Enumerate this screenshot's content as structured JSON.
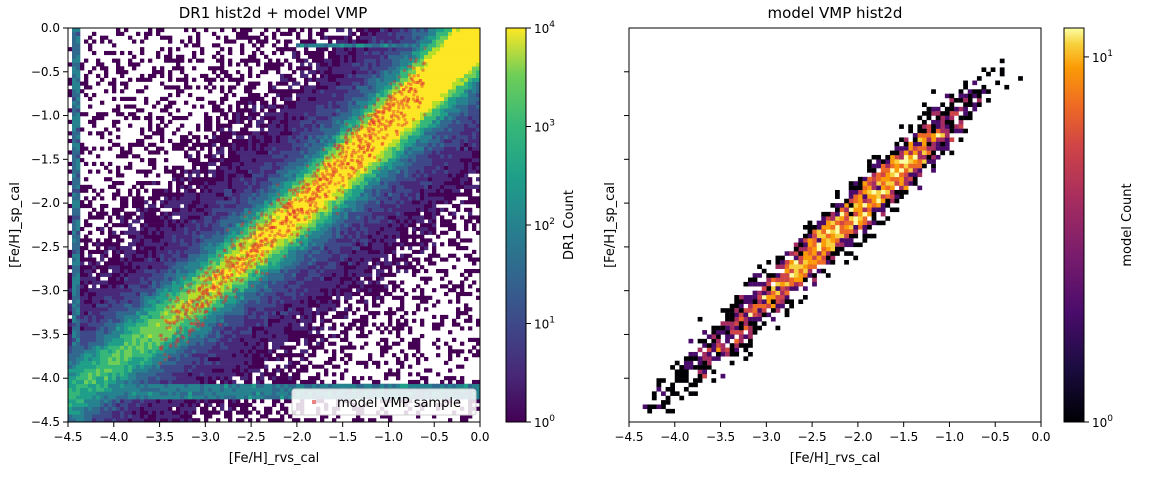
{
  "chart_data": [
    {
      "type": "heatmap",
      "title": "DR1 hist2d + model VMP",
      "xlabel": "[Fe/H]_rvs_cal",
      "ylabel": "[Fe/H]_sp_cal",
      "xlim": [
        -4.5,
        0.0
      ],
      "ylim": [
        -4.5,
        0.0
      ],
      "xticks": [
        -4.5,
        -4.0,
        -3.5,
        -3.0,
        -2.5,
        -2.0,
        -1.5,
        -1.0,
        -0.5,
        0.0
      ],
      "yticks": [
        -4.5,
        -4.0,
        -3.5,
        -3.0,
        -2.5,
        -2.0,
        -1.5,
        -1.0,
        -0.5,
        0.0
      ],
      "xtick_labels": [
        "−4.5",
        "−4.0",
        "−3.5",
        "−3.0",
        "−2.5",
        "−2.0",
        "−1.5",
        "−1.0",
        "−0.5",
        "0.0"
      ],
      "ytick_labels": [
        "−4.5",
        "−4.0",
        "−3.5",
        "−3.0",
        "−2.5",
        "−2.0",
        "−1.5",
        "−1.0",
        "−0.5",
        "0.0"
      ],
      "colormap": "viridis",
      "colorbar": {
        "label": "DR1 Count",
        "scale": "log",
        "range": [
          1,
          10000
        ],
        "ticks": [
          {
            "base": "10",
            "exp": "0"
          },
          {
            "base": "10",
            "exp": "1"
          },
          {
            "base": "10",
            "exp": "2"
          },
          {
            "base": "10",
            "exp": "3"
          },
          {
            "base": "10",
            "exp": "4"
          }
        ]
      },
      "features": {
        "ridge": {
          "x": [
            -4.5,
            -3.0,
            -2.0,
            -1.0,
            0.0
          ],
          "y": [
            -4.2,
            -3.0,
            -2.1,
            -1.1,
            -0.05
          ]
        },
        "vertical_artifact_x": -4.4,
        "horizontal_artifacts_y": [
          -4.1,
          -4.2,
          -0.2
        ]
      },
      "overlay": {
        "name": "model VMP sample",
        "marker_color": "#e03030",
        "x_range": [
          -3.5,
          -0.6
        ],
        "slope": 1.02,
        "intercept": -0.0
      },
      "legend": {
        "location": "lower-right",
        "entries": [
          "model VMP sample"
        ]
      }
    },
    {
      "type": "heatmap",
      "title": "model VMP hist2d",
      "xlabel": "[Fe/H]_rvs_cal",
      "ylabel": "[Fe/H]_sp_cal",
      "xlim": [
        -4.5,
        0.0
      ],
      "ylim": [
        -4.5,
        0.0
      ],
      "xticks": [
        -4.5,
        -4.0,
        -3.5,
        -3.0,
        -2.5,
        -2.0,
        -1.5,
        -1.0,
        -0.5,
        0.0
      ],
      "xtick_labels": [
        "−4.5",
        "−4.0",
        "−3.5",
        "−3.0",
        "−2.5",
        "−2.0",
        "−1.5",
        "−1.0",
        "−0.5",
        "0.0"
      ],
      "yticks_unlabeled": [
        -4.0,
        -3.5,
        -3.0,
        -2.5,
        -2.0,
        -1.5,
        -1.0,
        -0.5
      ],
      "colormap": "inferno",
      "colorbar": {
        "label": "model Count",
        "scale": "log",
        "range": [
          1,
          12
        ],
        "ticks": [
          {
            "base": "10",
            "exp": "0"
          },
          {
            "base": "10",
            "exp": "1"
          }
        ]
      },
      "data_extent": {
        "x": [
          -4.45,
          -0.2
        ],
        "y": [
          -4.45,
          -0.3
        ]
      },
      "peak": {
        "x": -2.5,
        "y": -2.6
      }
    }
  ]
}
